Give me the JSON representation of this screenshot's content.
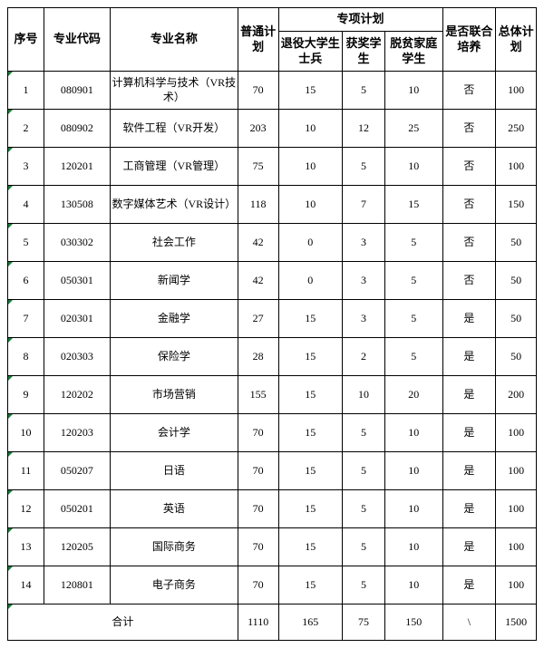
{
  "headers": {
    "seq": "序号",
    "code": "专业代码",
    "name": "专业名称",
    "general": "普通计划",
    "special": "专项计划",
    "sp_veteran": "退役大学生士兵",
    "sp_award": "获奖学生",
    "sp_poor": "脱贫家庭学生",
    "joint": "是否联合培养",
    "total": "总体计划"
  },
  "rows": [
    {
      "seq": "1",
      "code": "080901",
      "name": "计算机科学与技术（VR技术）",
      "gen": "70",
      "v": "15",
      "a": "5",
      "p": "10",
      "joint": "否",
      "total": "100"
    },
    {
      "seq": "2",
      "code": "080902",
      "name": "软件工程（VR开发）",
      "gen": "203",
      "v": "10",
      "a": "12",
      "p": "25",
      "joint": "否",
      "total": "250"
    },
    {
      "seq": "3",
      "code": "120201",
      "name": "工商管理（VR管理）",
      "gen": "75",
      "v": "10",
      "a": "5",
      "p": "10",
      "joint": "否",
      "total": "100"
    },
    {
      "seq": "4",
      "code": "130508",
      "name": "数字媒体艺术（VR设计）",
      "gen": "118",
      "v": "10",
      "a": "7",
      "p": "15",
      "joint": "否",
      "total": "150"
    },
    {
      "seq": "5",
      "code": "030302",
      "name": "社会工作",
      "gen": "42",
      "v": "0",
      "a": "3",
      "p": "5",
      "joint": "否",
      "total": "50"
    },
    {
      "seq": "6",
      "code": "050301",
      "name": "新闻学",
      "gen": "42",
      "v": "0",
      "a": "3",
      "p": "5",
      "joint": "否",
      "total": "50"
    },
    {
      "seq": "7",
      "code": "020301",
      "name": "金融学",
      "gen": "27",
      "v": "15",
      "a": "3",
      "p": "5",
      "joint": "是",
      "total": "50"
    },
    {
      "seq": "8",
      "code": "020303",
      "name": "保险学",
      "gen": "28",
      "v": "15",
      "a": "2",
      "p": "5",
      "joint": "是",
      "total": "50"
    },
    {
      "seq": "9",
      "code": "120202",
      "name": "市场营销",
      "gen": "155",
      "v": "15",
      "a": "10",
      "p": "20",
      "joint": "是",
      "total": "200"
    },
    {
      "seq": "10",
      "code": "120203",
      "name": "会计学",
      "gen": "70",
      "v": "15",
      "a": "5",
      "p": "10",
      "joint": "是",
      "total": "100"
    },
    {
      "seq": "11",
      "code": "050207",
      "name": "日语",
      "gen": "70",
      "v": "15",
      "a": "5",
      "p": "10",
      "joint": "是",
      "total": "100"
    },
    {
      "seq": "12",
      "code": "050201",
      "name": "英语",
      "gen": "70",
      "v": "15",
      "a": "5",
      "p": "10",
      "joint": "是",
      "total": "100"
    },
    {
      "seq": "13",
      "code": "120205",
      "name": "国际商务",
      "gen": "70",
      "v": "15",
      "a": "5",
      "p": "10",
      "joint": "是",
      "total": "100"
    },
    {
      "seq": "14",
      "code": "120801",
      "name": "电子商务",
      "gen": "70",
      "v": "15",
      "a": "5",
      "p": "10",
      "joint": "是",
      "total": "100"
    }
  ],
  "sum": {
    "label": "合计",
    "gen": "1110",
    "v": "165",
    "a": "75",
    "p": "150",
    "joint": "\\",
    "total": "1500"
  }
}
